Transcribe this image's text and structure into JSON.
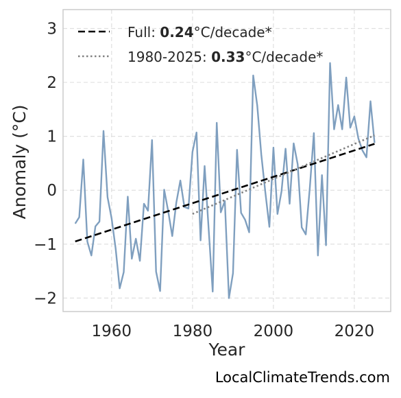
{
  "chart_data": {
    "type": "line",
    "xlabel": "Year",
    "ylabel": "Anomaly (°C)",
    "xlim": [
      1948,
      2029
    ],
    "ylim": [
      -2.25,
      3.35
    ],
    "xticks": [
      1960,
      1980,
      2000,
      2020
    ],
    "yticks": [
      -2,
      -1,
      0,
      1,
      2,
      3
    ],
    "ytick_labels": [
      "−2",
      "−1",
      "0",
      "1",
      "2",
      "3"
    ],
    "grid": true,
    "legend_position": "top-left",
    "series": [
      {
        "color": "#7f9fbf",
        "x": [
          1951,
          1952,
          1953,
          1954,
          1955,
          1956,
          1957,
          1958,
          1959,
          1960,
          1961,
          1962,
          1963,
          1964,
          1965,
          1966,
          1967,
          1968,
          1969,
          1970,
          1971,
          1972,
          1973,
          1974,
          1975,
          1976,
          1977,
          1978,
          1979,
          1980,
          1981,
          1982,
          1983,
          1984,
          1985,
          1986,
          1987,
          1988,
          1989,
          1990,
          1991,
          1992,
          1993,
          1994,
          1995,
          1996,
          1997,
          1998,
          1999,
          2000,
          2001,
          2002,
          2003,
          2004,
          2005,
          2006,
          2007,
          2008,
          2009,
          2010,
          2011,
          2012,
          2013,
          2014,
          2015,
          2016,
          2017,
          2018,
          2019,
          2020,
          2021,
          2022,
          2023,
          2024,
          2025
        ],
        "y": [
          -0.62,
          -0.5,
          0.57,
          -0.95,
          -1.21,
          -0.67,
          -0.58,
          1.1,
          -0.13,
          -0.52,
          -1.08,
          -1.82,
          -1.52,
          -0.12,
          -1.27,
          -0.9,
          -1.31,
          -0.25,
          -0.38,
          0.93,
          -1.51,
          -1.87,
          0.01,
          -0.39,
          -0.85,
          -0.23,
          0.18,
          -0.31,
          -0.34,
          0.71,
          1.07,
          -0.93,
          0.45,
          -0.72,
          -1.88,
          1.25,
          -0.41,
          -0.2,
          -2.0,
          -1.54,
          0.75,
          -0.42,
          -0.55,
          -0.78,
          2.13,
          1.57,
          0.66,
          -0.04,
          -0.68,
          0.79,
          -0.44,
          -0.02,
          0.77,
          -0.25,
          0.87,
          0.48,
          -0.69,
          -0.82,
          0.05,
          1.06,
          -1.21,
          0.28,
          -1.02,
          2.36,
          1.13,
          1.58,
          1.13,
          2.09,
          1.16,
          1.37,
          0.96,
          0.74,
          0.61,
          1.65,
          0.88
        ]
      },
      {
        "name": "Full",
        "color": "#000000",
        "style": "dashed",
        "x": [
          1951,
          2025
        ],
        "y": [
          -0.95,
          0.86
        ]
      },
      {
        "name": "1980-2025",
        "color": "#808080",
        "style": "dotted",
        "x": [
          1980,
          2025
        ],
        "y": [
          -0.44,
          1.02
        ]
      }
    ],
    "legend": [
      {
        "label_prefix": "Full: ",
        "label_value": "0.24",
        "label_suffix": "°C/decade*"
      },
      {
        "label_prefix": "1980-2025: ",
        "label_value": "0.33",
        "label_suffix": "°C/decade*"
      }
    ]
  },
  "watermark": "LocalClimateTrends.com"
}
